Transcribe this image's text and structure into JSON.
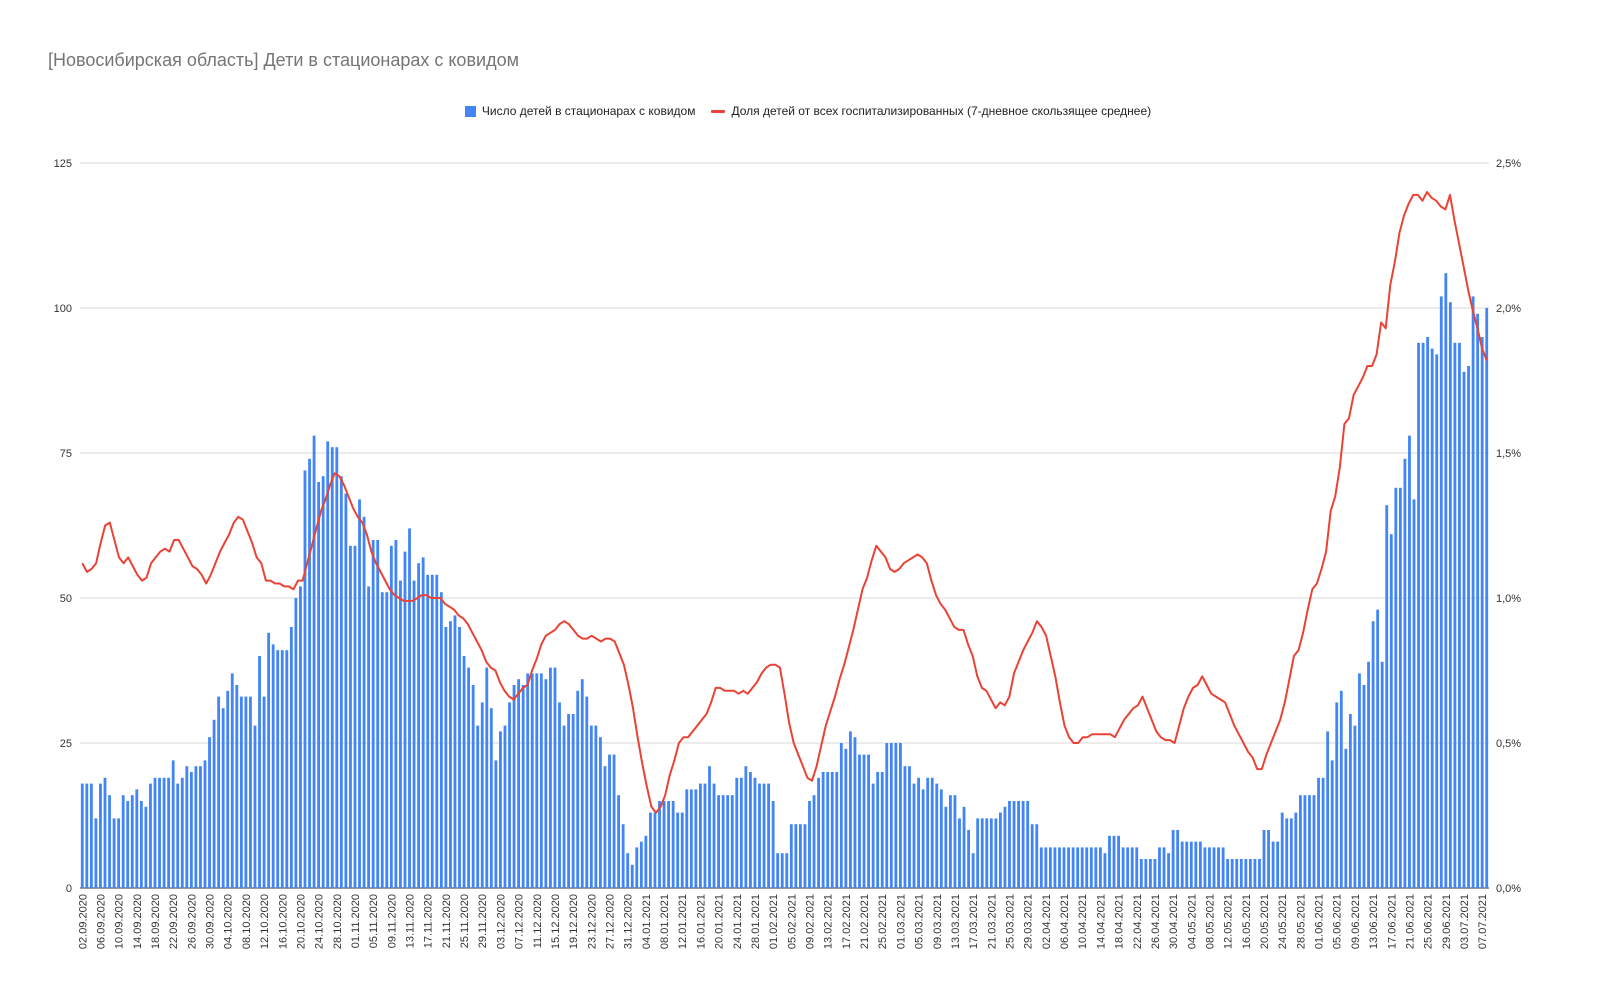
{
  "title": "[Новосибирская область] Дети в стационарах с ковидом",
  "colors": {
    "bars": "#4285f4",
    "line": "#ea4335",
    "grid": "#d9d9d9"
  },
  "legend": {
    "bars": "Число детей в стационарах с ковидом",
    "line": "Доля детей от всех госпитализированных (7-дневное скользящее среднее)"
  },
  "chart_data": {
    "type": "bar",
    "grid": true,
    "legend_position": "top",
    "left_axis": {
      "ylim": [
        0,
        125
      ],
      "ticks": [
        "0",
        "25",
        "50",
        "75",
        "100",
        "125"
      ]
    },
    "right_axis": {
      "ylim": [
        0,
        2.5
      ],
      "ticks": [
        "0,0%",
        "0,5%",
        "1,0%",
        "1,5%",
        "2,0%",
        "2,5%"
      ]
    },
    "x_tick_labels": [
      "02.09.2020",
      "06.09.2020",
      "10.09.2020",
      "14.09.2020",
      "18.09.2020",
      "22.09.2020",
      "26.09.2020",
      "30.09.2020",
      "04.10.2020",
      "08.10.2020",
      "12.10.2020",
      "16.10.2020",
      "20.10.2020",
      "24.10.2020",
      "28.10.2020",
      "01.11.2020",
      "05.11.2020",
      "09.11.2020",
      "13.11.2020",
      "17.11.2020",
      "21.11.2020",
      "25.11.2020",
      "29.11.2020",
      "03.12.2020",
      "07.12.2020",
      "11.12.2020",
      "15.12.2020",
      "19.12.2020",
      "23.12.2020",
      "27.12.2020",
      "31.12.2020",
      "04.01.2021",
      "08.01.2021",
      "12.01.2021",
      "16.01.2021",
      "20.01.2021",
      "24.01.2021",
      "28.01.2021",
      "01.02.2021",
      "05.02.2021",
      "09.02.2021",
      "13.02.2021",
      "17.02.2021",
      "21.02.2021",
      "25.02.2021",
      "01.03.2021",
      "05.03.2021",
      "09.03.2021",
      "13.03.2021",
      "17.03.2021",
      "21.03.2021",
      "25.03.2021",
      "29.03.2021",
      "02.04.2021",
      "06.04.2021",
      "10.04.2021",
      "14.04.2021",
      "18.04.2021",
      "22.04.2021",
      "26.04.2021",
      "30.04.2021",
      "04.05.2021",
      "08.05.2021",
      "12.05.2021",
      "16.05.2021",
      "20.05.2021",
      "24.05.2021",
      "28.05.2021",
      "01.06.2021",
      "05.06.2021",
      "09.06.2021",
      "13.06.2021",
      "17.06.2021",
      "21.06.2021",
      "25.06.2021",
      "29.06.2021",
      "03.07.2021",
      "07.07.2021"
    ],
    "series": [
      {
        "name": "Число детей в стационарах с ковидом",
        "type": "bar",
        "axis": "left",
        "values": [
          18,
          18,
          18,
          12,
          18,
          19,
          16,
          12,
          12,
          16,
          15,
          16,
          17,
          15,
          14,
          18,
          19,
          19,
          19,
          19,
          22,
          18,
          19,
          21,
          20,
          21,
          21,
          22,
          26,
          29,
          33,
          31,
          34,
          37,
          35,
          33,
          33,
          33,
          28,
          40,
          33,
          44,
          42,
          41,
          41,
          41,
          45,
          50,
          52,
          72,
          74,
          78,
          70,
          71,
          77,
          76,
          76,
          71,
          68,
          59,
          59,
          67,
          64,
          52,
          60,
          60,
          51,
          51,
          59,
          60,
          53,
          58,
          62,
          53,
          56,
          57,
          54,
          54,
          54,
          51,
          45,
          46,
          47,
          45,
          40,
          38,
          35,
          28,
          32,
          38,
          31,
          22,
          27,
          28,
          32,
          35,
          36,
          35,
          37,
          37,
          37,
          37,
          36,
          38,
          38,
          32,
          28,
          30,
          30,
          34,
          36,
          33,
          28,
          28,
          26,
          21,
          23,
          23,
          16,
          11,
          6,
          4,
          7,
          8,
          9,
          13,
          13,
          15,
          15,
          15,
          15,
          13,
          13,
          17,
          17,
          17,
          18,
          18,
          21,
          18,
          16,
          16,
          16,
          16,
          19,
          19,
          21,
          20,
          19,
          18,
          18,
          18,
          15,
          6,
          6,
          6,
          11,
          11,
          11,
          11,
          15,
          16,
          19,
          20,
          20,
          20,
          20,
          25,
          24,
          27,
          26,
          23,
          23,
          23,
          18,
          20,
          20,
          25,
          25,
          25,
          25,
          21,
          21,
          18,
          19,
          17,
          19,
          19,
          18,
          17,
          14,
          16,
          16,
          12,
          14,
          10,
          6,
          12,
          12,
          12,
          12,
          12,
          13,
          14,
          15,
          15,
          15,
          15,
          15,
          11,
          11,
          7,
          7,
          7,
          7,
          7,
          7,
          7,
          7,
          7,
          7,
          7,
          7,
          7,
          7,
          6,
          9,
          9,
          9,
          7,
          7,
          7,
          7,
          5,
          5,
          5,
          5,
          7,
          7,
          6,
          10,
          10,
          8,
          8,
          8,
          8,
          8,
          7,
          7,
          7,
          7,
          7,
          5,
          5,
          5,
          5,
          5,
          5,
          5,
          5,
          10,
          10,
          8,
          8,
          13,
          12,
          12,
          13,
          16,
          16,
          16,
          16,
          19,
          19,
          27,
          22,
          32,
          34,
          24,
          30,
          28,
          37,
          35,
          39,
          46,
          48,
          39,
          66,
          61,
          69,
          69,
          74,
          78,
          67,
          94,
          94,
          95,
          93,
          92,
          102,
          106,
          101,
          94,
          94,
          89,
          90,
          102,
          99,
          95,
          100
        ]
      },
      {
        "name": "Доля детей от всех госпитализированных (7-дневное скользящее среднее)",
        "type": "line",
        "axis": "right",
        "values": [
          1.12,
          1.09,
          1.1,
          1.12,
          1.19,
          1.25,
          1.26,
          1.2,
          1.14,
          1.12,
          1.14,
          1.11,
          1.08,
          1.06,
          1.07,
          1.12,
          1.14,
          1.16,
          1.17,
          1.16,
          1.2,
          1.2,
          1.17,
          1.14,
          1.11,
          1.1,
          1.08,
          1.05,
          1.08,
          1.12,
          1.16,
          1.19,
          1.22,
          1.26,
          1.28,
          1.27,
          1.23,
          1.19,
          1.14,
          1.12,
          1.06,
          1.06,
          1.05,
          1.05,
          1.04,
          1.04,
          1.03,
          1.06,
          1.06,
          1.12,
          1.18,
          1.24,
          1.3,
          1.34,
          1.39,
          1.43,
          1.42,
          1.39,
          1.35,
          1.31,
          1.28,
          1.26,
          1.22,
          1.16,
          1.12,
          1.09,
          1.06,
          1.03,
          1.01,
          1.0,
          0.99,
          0.99,
          0.99,
          1.0,
          1.01,
          1.01,
          1.0,
          1.0,
          1.0,
          0.98,
          0.97,
          0.96,
          0.94,
          0.93,
          0.91,
          0.88,
          0.85,
          0.82,
          0.78,
          0.76,
          0.75,
          0.71,
          0.68,
          0.66,
          0.65,
          0.67,
          0.69,
          0.7,
          0.75,
          0.79,
          0.84,
          0.87,
          0.88,
          0.89,
          0.91,
          0.92,
          0.91,
          0.89,
          0.87,
          0.86,
          0.86,
          0.87,
          0.86,
          0.85,
          0.86,
          0.86,
          0.85,
          0.81,
          0.77,
          0.7,
          0.62,
          0.52,
          0.43,
          0.35,
          0.28,
          0.26,
          0.28,
          0.32,
          0.39,
          0.44,
          0.5,
          0.52,
          0.52,
          0.54,
          0.56,
          0.58,
          0.6,
          0.64,
          0.69,
          0.69,
          0.68,
          0.68,
          0.68,
          0.67,
          0.68,
          0.67,
          0.69,
          0.71,
          0.74,
          0.76,
          0.77,
          0.77,
          0.76,
          0.67,
          0.57,
          0.5,
          0.46,
          0.42,
          0.38,
          0.37,
          0.42,
          0.49,
          0.56,
          0.61,
          0.66,
          0.72,
          0.77,
          0.83,
          0.89,
          0.96,
          1.03,
          1.07,
          1.13,
          1.18,
          1.16,
          1.14,
          1.1,
          1.09,
          1.1,
          1.12,
          1.13,
          1.14,
          1.15,
          1.14,
          1.12,
          1.06,
          1.01,
          0.98,
          0.96,
          0.93,
          0.9,
          0.89,
          0.89,
          0.84,
          0.8,
          0.73,
          0.69,
          0.68,
          0.65,
          0.62,
          0.64,
          0.63,
          0.66,
          0.74,
          0.78,
          0.82,
          0.85,
          0.88,
          0.92,
          0.9,
          0.87,
          0.8,
          0.73,
          0.64,
          0.56,
          0.52,
          0.5,
          0.5,
          0.52,
          0.52,
          0.53,
          0.53,
          0.53,
          0.53,
          0.53,
          0.52,
          0.55,
          0.58,
          0.6,
          0.62,
          0.63,
          0.66,
          0.62,
          0.58,
          0.54,
          0.52,
          0.51,
          0.51,
          0.5,
          0.56,
          0.62,
          0.66,
          0.69,
          0.7,
          0.73,
          0.7,
          0.67,
          0.66,
          0.65,
          0.64,
          0.6,
          0.56,
          0.53,
          0.5,
          0.47,
          0.45,
          0.41,
          0.41,
          0.46,
          0.5,
          0.54,
          0.58,
          0.64,
          0.72,
          0.8,
          0.82,
          0.88,
          0.96,
          1.03,
          1.05,
          1.1,
          1.16,
          1.3,
          1.35,
          1.45,
          1.6,
          1.62,
          1.7,
          1.73,
          1.76,
          1.8,
          1.8,
          1.84,
          1.95,
          1.93,
          2.08,
          2.16,
          2.26,
          2.32,
          2.36,
          2.39,
          2.39,
          2.37,
          2.4,
          2.38,
          2.37,
          2.35,
          2.34,
          2.39,
          2.3,
          2.22,
          2.14,
          2.06,
          1.99,
          1.93,
          1.86,
          1.82
        ]
      }
    ]
  }
}
